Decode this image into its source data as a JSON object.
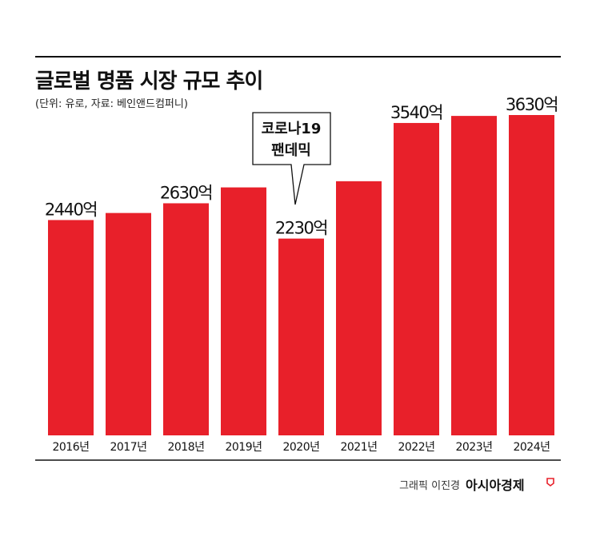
{
  "title": "글로벌 명품 시장 규모 추이",
  "subtitle": "(단위: 유로, 자료: 베인앤드컴퍼니)",
  "callout": {
    "line1": "코로나19",
    "line2": "팬데믹"
  },
  "credit": "그래픽 이진경",
  "brand": "아시아경제",
  "colors": {
    "bar": "#e8202a",
    "text": "#111111",
    "rule": "#111111"
  },
  "chart_data": {
    "type": "bar",
    "categories": [
      "2016년",
      "2017년",
      "2018년",
      "2019년",
      "2020년",
      "2021년",
      "2022년",
      "2023년",
      "2024년"
    ],
    "values": [
      2440,
      2520,
      2630,
      2810,
      2230,
      2880,
      3540,
      3620,
      3630
    ],
    "data_labels": [
      "2440억",
      "",
      "2630억",
      "",
      "2230억",
      "",
      "3540억",
      "",
      "3630억"
    ],
    "title": "글로벌 명품 시장 규모 추이",
    "xlabel": "",
    "ylabel": "",
    "grid": false
  }
}
